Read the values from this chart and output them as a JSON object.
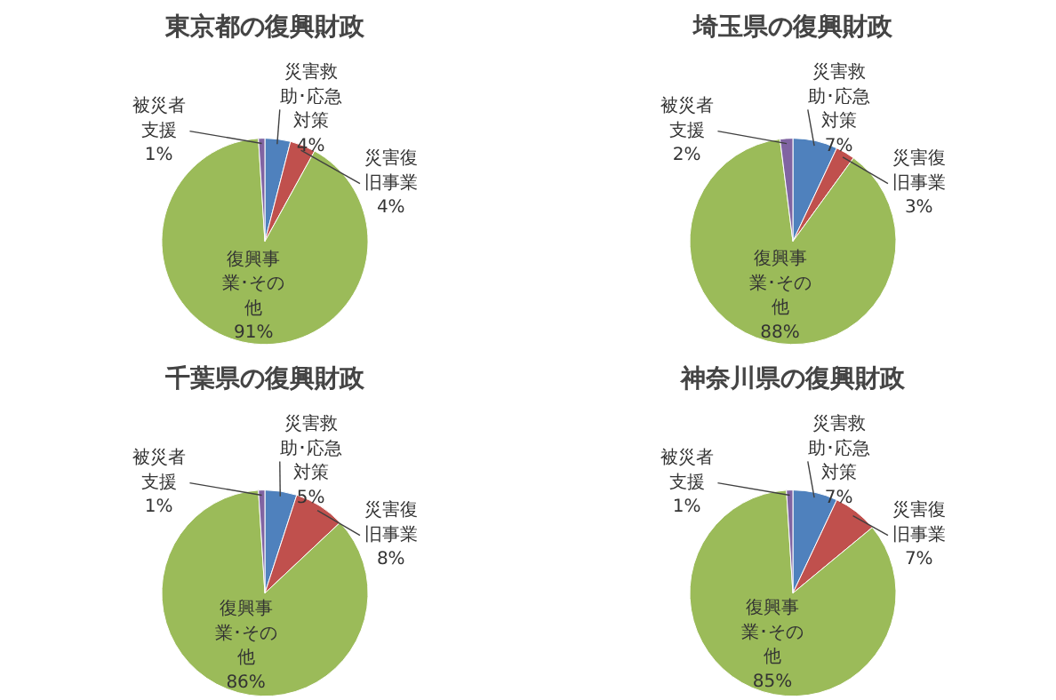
{
  "chart_data": [
    {
      "type": "pie",
      "title": "東京都の復興財政",
      "categories": [
        "災害救助･応急対策",
        "災害復旧事業",
        "復興事業･その他",
        "被災者支援"
      ],
      "values": [
        4,
        4,
        91,
        1
      ],
      "value_labels": [
        "4%",
        "4%",
        "91%",
        "1%"
      ],
      "colors": [
        "#4f81bd",
        "#c0504d",
        "#9bbb59",
        "#8064a2"
      ],
      "legend": false
    },
    {
      "type": "pie",
      "title": "埼玉県の復興財政",
      "categories": [
        "災害救助･応急対策",
        "災害復旧事業",
        "復興事業･その他",
        "被災者支援"
      ],
      "values": [
        7,
        3,
        88,
        2
      ],
      "value_labels": [
        "7%",
        "3%",
        "88%",
        "2%"
      ],
      "colors": [
        "#4f81bd",
        "#c0504d",
        "#9bbb59",
        "#8064a2"
      ],
      "legend": false
    },
    {
      "type": "pie",
      "title": "千葉県の復興財政",
      "categories": [
        "災害救助･応急対策",
        "災害復旧事業",
        "復興事業･その他",
        "被災者支援"
      ],
      "values": [
        5,
        8,
        86,
        1
      ],
      "value_labels": [
        "5%",
        "8%",
        "86%",
        "1%"
      ],
      "colors": [
        "#4f81bd",
        "#c0504d",
        "#9bbb59",
        "#8064a2"
      ],
      "legend": false
    },
    {
      "type": "pie",
      "title": "神奈川県の復興財政",
      "categories": [
        "災害救助･応急対策",
        "災害復旧事業",
        "復興事業･その他",
        "被災者支援"
      ],
      "values": [
        7,
        7,
        85,
        1
      ],
      "value_labels": [
        "7%",
        "7%",
        "85%",
        "1%"
      ],
      "colors": [
        "#4f81bd",
        "#c0504d",
        "#9bbb59",
        "#8064a2"
      ],
      "legend": false
    }
  ]
}
